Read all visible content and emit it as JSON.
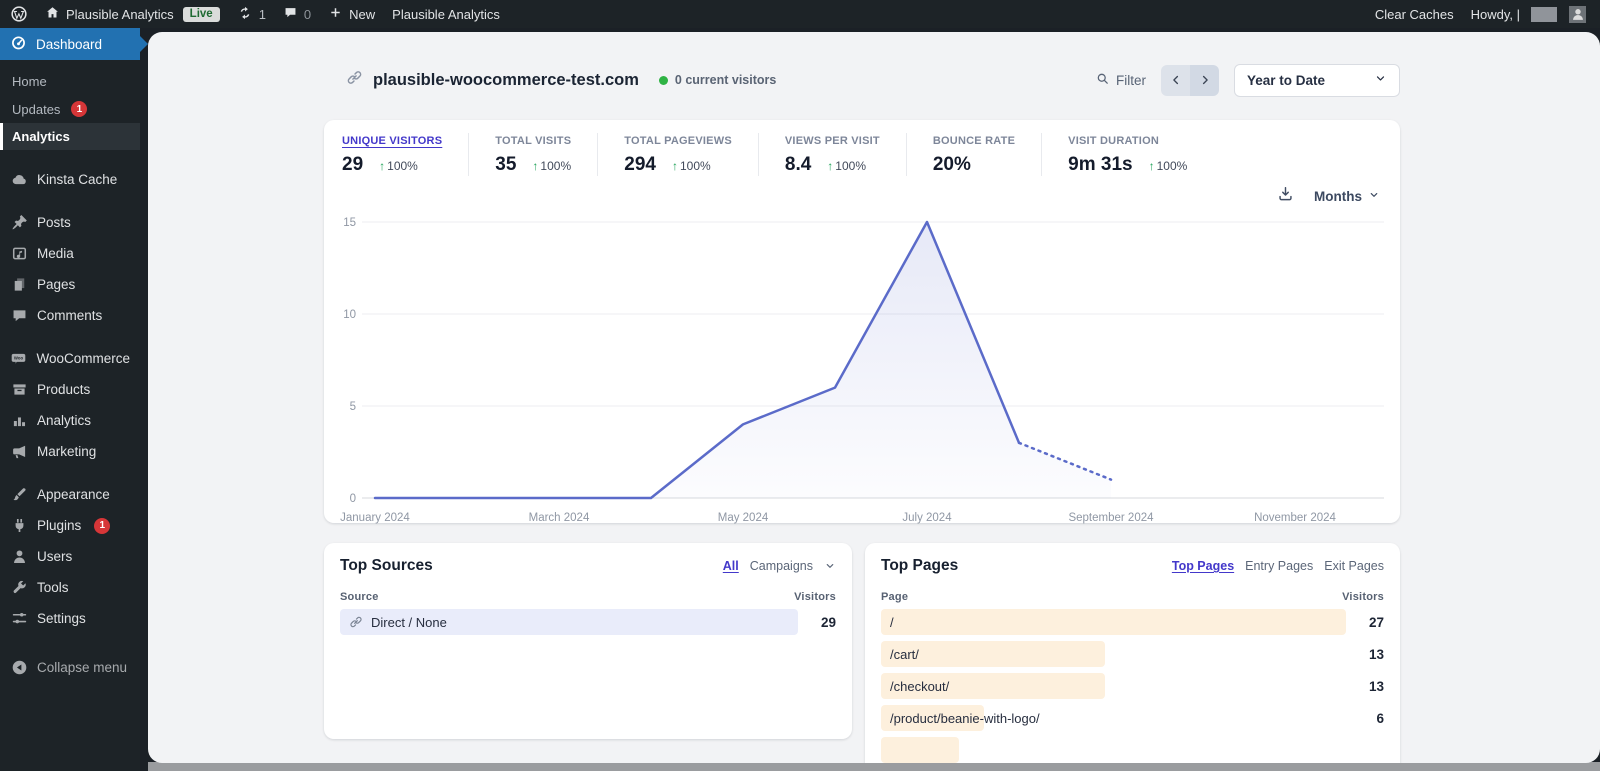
{
  "admin_bar": {
    "site_name": "Plausible Analytics",
    "live_badge": "Live",
    "update_count": "1",
    "comment_count": "0",
    "new_label": "New",
    "plugin_shortcut": "Plausible Analytics",
    "clear_caches": "Clear Caches",
    "howdy": "Howdy, |"
  },
  "sidebar": {
    "top": {
      "label": "Dashboard",
      "icon": "dashboard-icon"
    },
    "submenu": [
      {
        "label": "Home"
      },
      {
        "label": "Updates",
        "badge": "1"
      },
      {
        "label": "Analytics",
        "active": true
      }
    ],
    "groups": [
      [
        {
          "label": "Kinsta Cache",
          "icon": "cloud-icon"
        }
      ],
      [
        {
          "label": "Posts",
          "icon": "pin-icon"
        },
        {
          "label": "Media",
          "icon": "media-icon"
        },
        {
          "label": "Pages",
          "icon": "pages-icon"
        },
        {
          "label": "Comments",
          "icon": "comment-icon"
        }
      ],
      [
        {
          "label": "WooCommerce",
          "icon": "woocommerce-icon"
        },
        {
          "label": "Products",
          "icon": "products-icon"
        },
        {
          "label": "Analytics",
          "icon": "bar-chart-icon"
        },
        {
          "label": "Marketing",
          "icon": "megaphone-icon"
        }
      ],
      [
        {
          "label": "Appearance",
          "icon": "brush-icon"
        },
        {
          "label": "Plugins",
          "icon": "plug-icon",
          "badge": "1"
        },
        {
          "label": "Users",
          "icon": "user-icon"
        },
        {
          "label": "Tools",
          "icon": "wrench-icon"
        },
        {
          "label": "Settings",
          "icon": "sliders-icon"
        }
      ],
      [
        {
          "label": "Collapse menu",
          "icon": "collapse-icon"
        }
      ]
    ]
  },
  "header": {
    "domain": "plausible-woocommerce-test.com",
    "current_visitors": "0 current visitors",
    "filter_label": "Filter",
    "date_range": "Year to Date"
  },
  "stats": [
    {
      "label": "UNIQUE VISITORS",
      "value": "29",
      "change": "100%",
      "active": true
    },
    {
      "label": "TOTAL VISITS",
      "value": "35",
      "change": "100%"
    },
    {
      "label": "TOTAL PAGEVIEWS",
      "value": "294",
      "change": "100%"
    },
    {
      "label": "VIEWS PER VISIT",
      "value": "8.4",
      "change": "100%"
    },
    {
      "label": "BOUNCE RATE",
      "value": "20%",
      "change": null
    },
    {
      "label": "VISIT DURATION",
      "value": "9m 31s",
      "change": "100%"
    }
  ],
  "chart_controls": {
    "interval_label": "Months"
  },
  "chart_data": {
    "type": "line",
    "title": "Unique visitors by month",
    "x": [
      "January 2024",
      "February 2024",
      "March 2024",
      "April 2024",
      "May 2024",
      "June 2024",
      "July 2024",
      "August 2024",
      "September 2024"
    ],
    "values": [
      0,
      0,
      0,
      0,
      4,
      6,
      15,
      3,
      1
    ],
    "dashed_from_index": 7,
    "months_on_axis": 12,
    "x_axis_labels": [
      "January 2024",
      "March 2024",
      "May 2024",
      "July 2024",
      "September 2024",
      "November 2024"
    ],
    "x_axis_label_month_indices": [
      0,
      2,
      4,
      6,
      8,
      10
    ],
    "yticks": [
      0,
      5,
      10,
      15
    ],
    "ylim": [
      0,
      15
    ],
    "grid": true,
    "legend": "none",
    "line_color": "#5b6bc9",
    "fill_color": "#6574cd"
  },
  "top_sources": {
    "title": "Top Sources",
    "filter_tabs": [
      "All",
      "Campaigns"
    ],
    "active_tab": "All",
    "columns": [
      "Source",
      "Visitors"
    ],
    "max_visitors": 29,
    "rows": [
      {
        "source": "Direct / None",
        "visitors": 29
      }
    ]
  },
  "top_pages": {
    "title": "Top Pages",
    "tabs": [
      "Top Pages",
      "Entry Pages",
      "Exit Pages"
    ],
    "active_tab": "Top Pages",
    "columns": [
      "Page",
      "Visitors"
    ],
    "max_visitors": 27,
    "rows": [
      {
        "page": "/",
        "visitors": 27
      },
      {
        "page": "/cart/",
        "visitors": 13
      },
      {
        "page": "/checkout/",
        "visitors": 13
      },
      {
        "page": "/product/beanie-with-logo/",
        "visitors": 6
      }
    ]
  },
  "colors": {
    "accent_indigo": "#4338ca",
    "chart_line": "#5b6bc9",
    "green_up": "#21a35a",
    "admin_dark": "#1d2327",
    "active_blue": "#2271b1",
    "pages_bar": "#fdf0dd",
    "sources_bar": "#e9ecfa"
  }
}
